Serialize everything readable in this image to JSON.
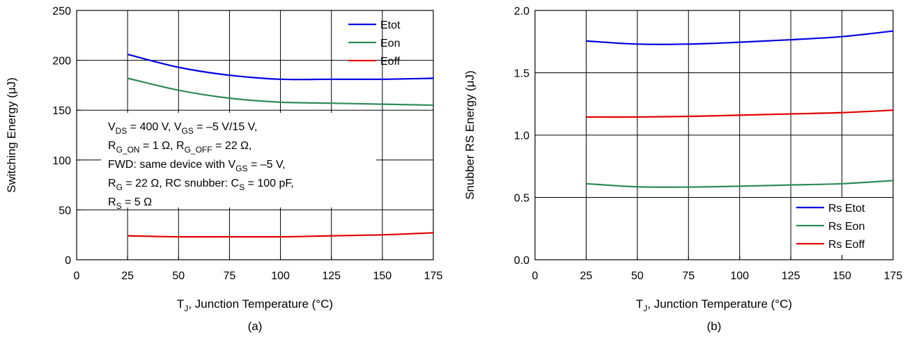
{
  "chart_data": [
    {
      "type": "line",
      "caption": "(a)",
      "ylabel": "Switching Energy (μJ)",
      "xlabel": {
        "main": "T",
        "sub": "J",
        "rest": ", Junction Temperature (°C)"
      },
      "xlim": [
        0,
        175
      ],
      "ylim": [
        0,
        250
      ],
      "xticks": [
        0,
        25,
        50,
        75,
        100,
        125,
        150,
        175
      ],
      "yticks": [
        0,
        50,
        100,
        150,
        200,
        250
      ],
      "ytick_labels": [
        "0",
        "50",
        "100",
        "150",
        "200",
        "250"
      ],
      "grid": true,
      "legend_position": "top-right",
      "x": [
        25,
        50,
        75,
        100,
        125,
        150,
        175
      ],
      "series": [
        {
          "name": "Etot",
          "color": "#0000e0",
          "values": [
            206,
            193,
            185,
            181,
            181,
            181,
            182
          ]
        },
        {
          "name": "Eon",
          "color": "#2e8b57",
          "values": [
            182,
            170,
            162,
            158,
            157,
            156,
            155
          ]
        },
        {
          "name": "Eoff",
          "color": "#e00000",
          "values": [
            24,
            23,
            23,
            23,
            24,
            25,
            27
          ]
        }
      ],
      "annotation": [
        [
          {
            "t": "V"
          },
          {
            "t": "DS",
            "sub": true
          },
          {
            "t": " = 400 V, V"
          },
          {
            "t": "GS",
            "sub": true
          },
          {
            "t": " = –5 V/15 V,"
          }
        ],
        [
          {
            "t": "R"
          },
          {
            "t": "G_ON",
            "sub": true
          },
          {
            "t": " = 1 Ω, R"
          },
          {
            "t": "G_OFF",
            "sub": true
          },
          {
            "t": " = 22 Ω,"
          }
        ],
        [
          {
            "t": "FWD: same device with V"
          },
          {
            "t": "GS",
            "sub": true
          },
          {
            "t": " = –5 V,"
          }
        ],
        [
          {
            "t": "R"
          },
          {
            "t": "G",
            "sub": true
          },
          {
            "t": " = 22 Ω, RC snubber: C"
          },
          {
            "t": "S",
            "sub": true
          },
          {
            "t": " = 100 pF,"
          }
        ],
        [
          {
            "t": "R"
          },
          {
            "t": "S",
            "sub": true
          },
          {
            "t": " = 5 Ω"
          }
        ]
      ]
    },
    {
      "type": "line",
      "caption": "(b)",
      "ylabel": "Snubber RS Energy (μJ)",
      "xlabel": {
        "main": "T",
        "sub": "J",
        "rest": ", Junction Temperature (°C)"
      },
      "xlim": [
        0,
        175
      ],
      "ylim": [
        0,
        2.0
      ],
      "xticks": [
        0,
        25,
        50,
        75,
        100,
        125,
        150,
        175
      ],
      "yticks": [
        0,
        0.5,
        1.0,
        1.5,
        2.0
      ],
      "ytick_labels": [
        "0.0",
        "0.5",
        "1.0",
        "1.5",
        "2.0"
      ],
      "grid": true,
      "legend_position": "bottom-right",
      "x": [
        25,
        50,
        75,
        100,
        125,
        150,
        175
      ],
      "series": [
        {
          "name": "Rs Etot",
          "color": "#0000e0",
          "values": [
            1.755,
            1.73,
            1.73,
            1.745,
            1.765,
            1.79,
            1.835
          ]
        },
        {
          "name": "Rs Eon",
          "color": "#2e8b57",
          "values": [
            0.61,
            0.585,
            0.583,
            0.59,
            0.6,
            0.61,
            0.635
          ]
        },
        {
          "name": "Rs Eoff",
          "color": "#e00000",
          "values": [
            1.145,
            1.145,
            1.15,
            1.16,
            1.17,
            1.18,
            1.2
          ]
        }
      ]
    }
  ]
}
